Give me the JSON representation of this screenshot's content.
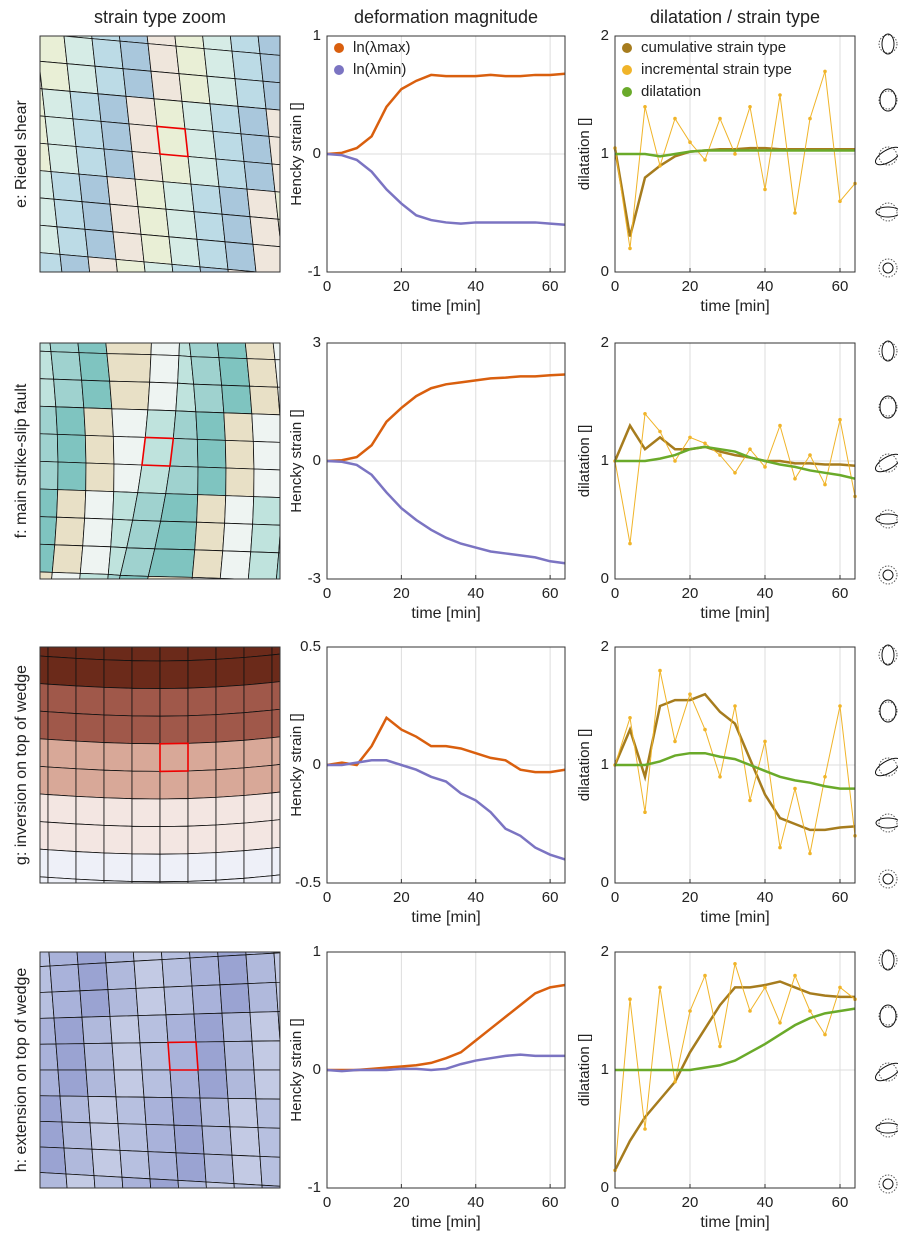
{
  "column_titles": [
    "strain type zoom",
    "deformation magnitude",
    "dilatation / strain type"
  ],
  "row_labels": [
    "e: Riedel shear",
    "f: main strike-slip fault",
    "g: inversion on top of wedge",
    "h: extension on top of wedge"
  ],
  "chart_data": [
    {
      "type": "line",
      "ylabel": "Hencky strain []",
      "xlabel": "time [min]",
      "xlim": [
        0,
        64
      ],
      "xticks": [
        0,
        20,
        40,
        60
      ],
      "ylim": [
        -1,
        1
      ],
      "yticks": [
        -1,
        0,
        1
      ],
      "grid": true,
      "legend": "upper left",
      "x": [
        0,
        4,
        8,
        12,
        16,
        20,
        24,
        28,
        32,
        36,
        40,
        44,
        48,
        52,
        56,
        60,
        64
      ],
      "series": [
        {
          "name": "ln(λmax)",
          "color": "#d95f0e",
          "values": [
            0,
            0.01,
            0.05,
            0.15,
            0.4,
            0.55,
            0.62,
            0.67,
            0.66,
            0.66,
            0.66,
            0.67,
            0.66,
            0.66,
            0.67,
            0.67,
            0.68
          ]
        },
        {
          "name": "ln(λmin)",
          "color": "#7b74c2",
          "values": [
            0,
            -0.01,
            -0.05,
            -0.15,
            -0.3,
            -0.42,
            -0.52,
            -0.56,
            -0.58,
            -0.59,
            -0.58,
            -0.58,
            -0.58,
            -0.58,
            -0.58,
            -0.59,
            -0.6
          ]
        }
      ]
    },
    {
      "type": "line",
      "ylabel": "dilatation []",
      "xlabel": "time [min]",
      "xlim": [
        0,
        64
      ],
      "xticks": [
        0,
        20,
        40,
        60
      ],
      "ylim": [
        0,
        2
      ],
      "yticks": [
        0,
        1,
        2
      ],
      "grid": true,
      "legend": "upper left",
      "x": [
        0,
        4,
        8,
        12,
        16,
        20,
        24,
        28,
        32,
        36,
        40,
        44,
        48,
        52,
        56,
        60,
        64
      ],
      "series": [
        {
          "name": "cumulative strain type",
          "color": "#a67c1e",
          "values": [
            1.05,
            0.3,
            0.8,
            0.9,
            0.98,
            1.02,
            1.03,
            1.04,
            1.04,
            1.05,
            1.05,
            1.04,
            1.04,
            1.04,
            1.04,
            1.04,
            1.04
          ]
        },
        {
          "name": "incremental strain type",
          "color": "#f0b429",
          "markers": true,
          "values": [
            1.05,
            0.2,
            1.4,
            0.9,
            1.3,
            1.1,
            0.95,
            1.3,
            1.0,
            1.4,
            0.7,
            1.5,
            0.5,
            1.3,
            1.7,
            0.6,
            0.75
          ]
        },
        {
          "name": "dilatation",
          "color": "#6aaa2a",
          "values": [
            1,
            1,
            1,
            0.98,
            1.0,
            1.02,
            1.03,
            1.03,
            1.03,
            1.03,
            1.03,
            1.03,
            1.03,
            1.03,
            1.03,
            1.03,
            1.03
          ]
        }
      ]
    },
    {
      "type": "line",
      "ylabel": "Hencky strain []",
      "xlabel": "time [min]",
      "xlim": [
        0,
        64
      ],
      "xticks": [
        0,
        20,
        40,
        60
      ],
      "ylim": [
        -3,
        3
      ],
      "yticks": [
        -3,
        0,
        3
      ],
      "grid": true,
      "x": [
        0,
        4,
        8,
        12,
        16,
        20,
        24,
        28,
        32,
        36,
        40,
        44,
        48,
        52,
        56,
        60,
        64
      ],
      "series": [
        {
          "color": "#d95f0e",
          "values": [
            0,
            0.02,
            0.1,
            0.4,
            1.0,
            1.35,
            1.65,
            1.85,
            1.95,
            2.0,
            2.05,
            2.1,
            2.12,
            2.15,
            2.15,
            2.18,
            2.2
          ]
        },
        {
          "color": "#7b74c2",
          "values": [
            0,
            -0.02,
            -0.1,
            -0.35,
            -0.8,
            -1.2,
            -1.5,
            -1.75,
            -1.95,
            -2.1,
            -2.2,
            -2.3,
            -2.35,
            -2.4,
            -2.45,
            -2.55,
            -2.6
          ]
        }
      ]
    },
    {
      "type": "line",
      "ylabel": "dilatation []",
      "xlabel": "time [min]",
      "xlim": [
        0,
        64
      ],
      "xticks": [
        0,
        20,
        40,
        60
      ],
      "ylim": [
        0,
        2
      ],
      "yticks": [
        0,
        1,
        2
      ],
      "grid": true,
      "x": [
        0,
        4,
        8,
        12,
        16,
        20,
        24,
        28,
        32,
        36,
        40,
        44,
        48,
        52,
        56,
        60,
        64
      ],
      "series": [
        {
          "color": "#a67c1e",
          "values": [
            1,
            1.3,
            1.1,
            1.2,
            1.1,
            1.1,
            1.12,
            1.08,
            1.05,
            1.03,
            1.0,
            1.0,
            0.98,
            0.98,
            0.97,
            0.97,
            0.96
          ]
        },
        {
          "color": "#f0b429",
          "markers": true,
          "values": [
            1,
            0.3,
            1.4,
            1.25,
            1.0,
            1.2,
            1.15,
            1.05,
            0.9,
            1.1,
            0.95,
            1.3,
            0.85,
            1.05,
            0.8,
            1.35,
            0.7
          ]
        },
        {
          "color": "#6aaa2a",
          "values": [
            1,
            1,
            1,
            1.02,
            1.05,
            1.1,
            1.12,
            1.1,
            1.08,
            1.03,
            1.0,
            0.97,
            0.95,
            0.92,
            0.9,
            0.88,
            0.85
          ]
        }
      ]
    },
    {
      "type": "line",
      "ylabel": "Hencky strain []",
      "xlabel": "time [min]",
      "xlim": [
        0,
        64
      ],
      "xticks": [
        0,
        20,
        40,
        60
      ],
      "ylim": [
        -0.5,
        0.5
      ],
      "yticks": [
        -0.5,
        0,
        0.5
      ],
      "grid": true,
      "x": [
        0,
        4,
        8,
        12,
        16,
        20,
        24,
        28,
        32,
        36,
        40,
        44,
        48,
        52,
        56,
        60,
        64
      ],
      "series": [
        {
          "color": "#d95f0e",
          "values": [
            0,
            0.01,
            0,
            0.08,
            0.2,
            0.15,
            0.12,
            0.08,
            0.08,
            0.07,
            0.05,
            0.03,
            0.02,
            -0.02,
            -0.03,
            -0.03,
            -0.02
          ]
        },
        {
          "color": "#7b74c2",
          "values": [
            0,
            0,
            0.01,
            0.02,
            0.02,
            0,
            -0.02,
            -0.05,
            -0.07,
            -0.12,
            -0.15,
            -0.2,
            -0.27,
            -0.3,
            -0.35,
            -0.38,
            -0.4
          ]
        }
      ]
    },
    {
      "type": "line",
      "ylabel": "dilatation []",
      "xlabel": "time [min]",
      "xlim": [
        0,
        64
      ],
      "xticks": [
        0,
        20,
        40,
        60
      ],
      "ylim": [
        0,
        2
      ],
      "yticks": [
        0,
        1,
        2
      ],
      "grid": true,
      "x": [
        0,
        4,
        8,
        12,
        16,
        20,
        24,
        28,
        32,
        36,
        40,
        44,
        48,
        52,
        56,
        60,
        64
      ],
      "series": [
        {
          "color": "#a67c1e",
          "values": [
            1,
            1.3,
            0.9,
            1.5,
            1.55,
            1.55,
            1.6,
            1.45,
            1.35,
            1.05,
            0.75,
            0.55,
            0.5,
            0.45,
            0.45,
            0.47,
            0.48
          ]
        },
        {
          "color": "#f0b429",
          "markers": true,
          "values": [
            1,
            1.4,
            0.6,
            1.8,
            1.2,
            1.6,
            1.3,
            0.9,
            1.5,
            0.7,
            1.2,
            0.3,
            0.8,
            0.25,
            0.9,
            1.5,
            0.4
          ]
        },
        {
          "color": "#6aaa2a",
          "values": [
            1,
            1,
            1,
            1.03,
            1.08,
            1.1,
            1.1,
            1.07,
            1.05,
            1.0,
            0.95,
            0.9,
            0.87,
            0.85,
            0.82,
            0.8,
            0.8
          ]
        }
      ]
    },
    {
      "type": "line",
      "ylabel": "Hencky strain []",
      "xlabel": "time [min]",
      "xlim": [
        0,
        64
      ],
      "xticks": [
        0,
        20,
        40,
        60
      ],
      "ylim": [
        -1,
        1
      ],
      "yticks": [
        -1,
        0,
        1
      ],
      "grid": true,
      "x": [
        0,
        4,
        8,
        12,
        16,
        20,
        24,
        28,
        32,
        36,
        40,
        44,
        48,
        52,
        56,
        60,
        64
      ],
      "series": [
        {
          "color": "#d95f0e",
          "values": [
            0,
            0,
            0,
            0.01,
            0.02,
            0.03,
            0.04,
            0.06,
            0.1,
            0.15,
            0.25,
            0.35,
            0.45,
            0.55,
            0.65,
            0.7,
            0.72
          ]
        },
        {
          "color": "#7b74c2",
          "values": [
            0,
            -0.01,
            0,
            0,
            0,
            0.01,
            0.01,
            0,
            0.01,
            0.05,
            0.08,
            0.1,
            0.12,
            0.13,
            0.12,
            0.12,
            0.12
          ]
        }
      ]
    },
    {
      "type": "line",
      "ylabel": "dilatation []",
      "xlabel": "time [min]",
      "xlim": [
        0,
        64
      ],
      "xticks": [
        0,
        20,
        40,
        60
      ],
      "ylim": [
        0,
        2
      ],
      "yticks": [
        0,
        1,
        2
      ],
      "grid": true,
      "x": [
        0,
        4,
        8,
        12,
        16,
        20,
        24,
        28,
        32,
        36,
        40,
        44,
        48,
        52,
        56,
        60,
        64
      ],
      "series": [
        {
          "color": "#a67c1e",
          "values": [
            0.15,
            0.4,
            0.6,
            0.75,
            0.9,
            1.15,
            1.35,
            1.55,
            1.7,
            1.7,
            1.72,
            1.75,
            1.7,
            1.65,
            1.63,
            1.62,
            1.62
          ]
        },
        {
          "color": "#f0b429",
          "markers": true,
          "values": [
            0.15,
            1.6,
            0.5,
            1.7,
            0.9,
            1.5,
            1.8,
            1.2,
            1.9,
            1.5,
            1.7,
            1.4,
            1.8,
            1.5,
            1.3,
            1.7,
            1.6
          ]
        },
        {
          "color": "#6aaa2a",
          "values": [
            1,
            1,
            1,
            1,
            1,
            1,
            1.02,
            1.04,
            1.08,
            1.15,
            1.22,
            1.3,
            1.38,
            1.44,
            1.48,
            1.5,
            1.52
          ]
        }
      ]
    }
  ]
}
